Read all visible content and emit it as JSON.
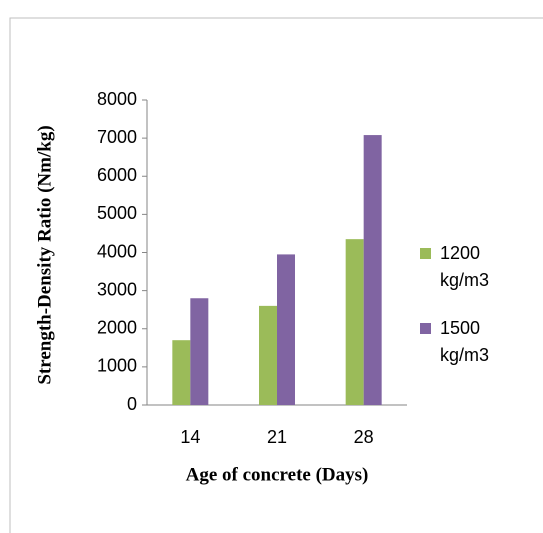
{
  "chart_data": {
    "type": "bar",
    "categories": [
      "14",
      "21",
      "28"
    ],
    "series": [
      {
        "name": "1200 kg/m3",
        "color": "#9bbb59",
        "values": [
          1700,
          2600,
          4350
        ]
      },
      {
        "name": "1500 kg/m3",
        "color": "#8064a2",
        "values": [
          2800,
          3950,
          7080
        ]
      }
    ],
    "ylim": [
      0,
      8000
    ],
    "yticks": [
      0,
      1000,
      2000,
      3000,
      4000,
      5000,
      6000,
      7000,
      8000
    ],
    "x_label": "Age of concrete (Days)",
    "y_label": "Strength-Density Ratio (Nm/kg)",
    "legend": "right"
  }
}
